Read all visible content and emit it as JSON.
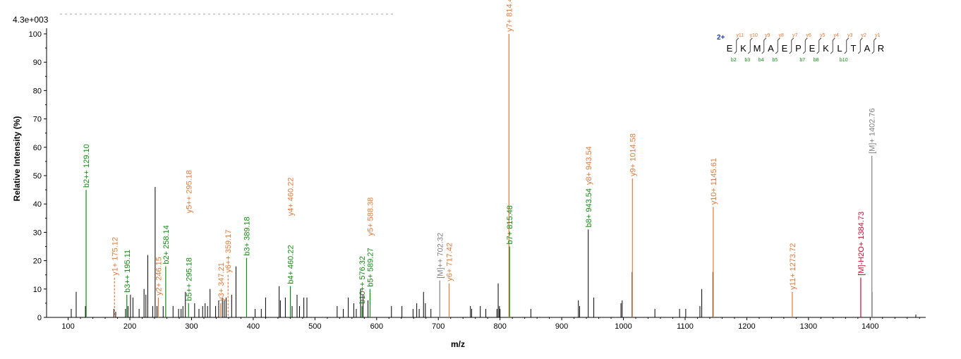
{
  "chart_data": {
    "type": "bar",
    "title": "",
    "scale_label": "4.3e+003",
    "xlabel": "m/z",
    "ylabel": "Relative   Intensity (%)",
    "xlim": [
      65,
      1490
    ],
    "ylim": [
      0,
      100
    ],
    "xticks": [
      "100",
      "200",
      "300",
      "400",
      "500",
      "600",
      "700",
      "800",
      "900",
      "1000",
      "1100",
      "1200",
      "1300",
      "1400"
    ],
    "xtick_values": [
      100,
      200,
      300,
      400,
      500,
      600,
      700,
      800,
      900,
      1000,
      1100,
      1200,
      1300,
      1400
    ],
    "yticks": [
      "0",
      "10",
      "20",
      "30",
      "40",
      "50",
      "60",
      "70",
      "80",
      "90",
      "100"
    ],
    "ytick_values": [
      0,
      10,
      20,
      30,
      40,
      50,
      60,
      70,
      80,
      90,
      100
    ],
    "grid": false,
    "colors": {
      "unassigned": "#000000",
      "b": "#138a13",
      "y": "#e07a3a",
      "precursor": "#808080",
      "water_loss": "#c8102e",
      "charge": "#1f3fb4"
    },
    "unassigned_peaks": [
      {
        "mz": 105,
        "i": 3
      },
      {
        "mz": 113,
        "i": 9
      },
      {
        "mz": 128,
        "i": 4
      },
      {
        "mz": 174,
        "i": 3
      },
      {
        "mz": 177,
        "i": 2
      },
      {
        "mz": 193,
        "i": 3
      },
      {
        "mz": 197,
        "i": 4
      },
      {
        "mz": 201,
        "i": 8
      },
      {
        "mz": 205,
        "i": 7
      },
      {
        "mz": 215,
        "i": 3
      },
      {
        "mz": 223,
        "i": 10
      },
      {
        "mz": 226,
        "i": 8
      },
      {
        "mz": 229,
        "i": 22
      },
      {
        "mz": 237,
        "i": 4
      },
      {
        "mz": 241,
        "i": 46
      },
      {
        "mz": 244,
        "i": 4
      },
      {
        "mz": 254,
        "i": 4
      },
      {
        "mz": 270,
        "i": 4
      },
      {
        "mz": 279,
        "i": 3
      },
      {
        "mz": 283,
        "i": 3
      },
      {
        "mz": 286,
        "i": 4
      },
      {
        "mz": 290,
        "i": 9
      },
      {
        "mz": 305,
        "i": 5
      },
      {
        "mz": 312,
        "i": 3
      },
      {
        "mz": 318,
        "i": 4
      },
      {
        "mz": 322,
        "i": 5
      },
      {
        "mz": 326,
        "i": 4
      },
      {
        "mz": 330,
        "i": 10
      },
      {
        "mz": 339,
        "i": 4
      },
      {
        "mz": 344,
        "i": 6
      },
      {
        "mz": 350,
        "i": 7
      },
      {
        "mz": 353,
        "i": 6
      },
      {
        "mz": 356,
        "i": 7
      },
      {
        "mz": 365,
        "i": 8
      },
      {
        "mz": 372,
        "i": 18
      },
      {
        "mz": 403,
        "i": 3
      },
      {
        "mz": 413,
        "i": 3
      },
      {
        "mz": 420,
        "i": 7
      },
      {
        "mz": 442,
        "i": 11
      },
      {
        "mz": 444,
        "i": 6
      },
      {
        "mz": 452,
        "i": 7
      },
      {
        "mz": 463,
        "i": 4
      },
      {
        "mz": 471,
        "i": 8
      },
      {
        "mz": 475,
        "i": 4
      },
      {
        "mz": 482,
        "i": 7
      },
      {
        "mz": 487,
        "i": 7
      },
      {
        "mz": 536,
        "i": 4
      },
      {
        "mz": 546,
        "i": 3
      },
      {
        "mz": 554,
        "i": 7
      },
      {
        "mz": 563,
        "i": 5
      },
      {
        "mz": 567,
        "i": 3
      },
      {
        "mz": 574,
        "i": 10
      },
      {
        "mz": 578,
        "i": 8
      },
      {
        "mz": 586,
        "i": 6
      },
      {
        "mz": 624,
        "i": 4
      },
      {
        "mz": 641,
        "i": 4
      },
      {
        "mz": 659,
        "i": 3
      },
      {
        "mz": 665,
        "i": 5
      },
      {
        "mz": 669,
        "i": 3
      },
      {
        "mz": 676,
        "i": 9
      },
      {
        "mz": 679,
        "i": 5
      },
      {
        "mz": 688,
        "i": 3
      },
      {
        "mz": 752,
        "i": 4
      },
      {
        "mz": 754,
        "i": 3
      },
      {
        "mz": 768,
        "i": 4
      },
      {
        "mz": 777,
        "i": 3
      },
      {
        "mz": 795,
        "i": 3
      },
      {
        "mz": 797,
        "i": 12
      },
      {
        "mz": 799,
        "i": 4
      },
      {
        "mz": 800,
        "i": 3
      },
      {
        "mz": 850,
        "i": 3
      },
      {
        "mz": 927,
        "i": 6
      },
      {
        "mz": 929,
        "i": 4
      },
      {
        "mz": 943,
        "i": 31
      },
      {
        "mz": 952,
        "i": 7
      },
      {
        "mz": 996,
        "i": 5
      },
      {
        "mz": 998,
        "i": 6
      },
      {
        "mz": 1014,
        "i": 16
      },
      {
        "mz": 1051,
        "i": 3
      },
      {
        "mz": 1091,
        "i": 3
      },
      {
        "mz": 1101,
        "i": 3
      },
      {
        "mz": 1124,
        "i": 4
      },
      {
        "mz": 1127,
        "i": 10
      },
      {
        "mz": 1145,
        "i": 16
      },
      {
        "mz": 1403,
        "i": 9
      },
      {
        "mz": 1474,
        "i": 1
      }
    ],
    "annotated_peaks": [
      {
        "mz": 129.1,
        "i": 45,
        "label": "b2++ 129.10",
        "type": "b"
      },
      {
        "mz": 175.12,
        "i": 14,
        "label": "y1+ 175.12",
        "type": "y",
        "dashed": true
      },
      {
        "mz": 195.11,
        "i": 8,
        "label": "b3++ 195.11",
        "type": "b"
      },
      {
        "mz": 246.15,
        "i": 7,
        "label": "y2+ 246.15",
        "type": "y"
      },
      {
        "mz": 258.14,
        "i": 18,
        "label": "b2+ 258.14",
        "type": "b"
      },
      {
        "mz": 295.18,
        "i": 5,
        "label": "b5++ 295.18",
        "type": "b"
      },
      {
        "mz": 295.18,
        "i": 36,
        "label": "y5++ 295.18",
        "type": "y",
        "label_only": true
      },
      {
        "mz": 347.21,
        "i": 5,
        "label": "y3+ 347.21",
        "type": "y"
      },
      {
        "mz": 359.17,
        "i": 15,
        "label": "y6++ 359.17",
        "type": "y",
        "dashed": true
      },
      {
        "mz": 389.18,
        "i": 21,
        "label": "b3+ 389.18",
        "type": "b"
      },
      {
        "mz": 460.22,
        "i": 11,
        "label": "b4+ 460.22",
        "type": "b"
      },
      {
        "mz": 460.22,
        "i": 35,
        "label": "y4+ 460.22",
        "type": "y",
        "label_only": true
      },
      {
        "mz": 576.32,
        "i": 4,
        "label": "b10++ 576.32",
        "type": "b"
      },
      {
        "mz": 589.27,
        "i": 10,
        "label": "b5+ 589.27",
        "type": "b"
      },
      {
        "mz": 589.27,
        "i": 28,
        "label": "y5+ 588.38",
        "type": "y",
        "label_only": true
      },
      {
        "mz": 702.32,
        "i": 13,
        "label": "[M]++ 702.32",
        "type": "precursor"
      },
      {
        "mz": 717.42,
        "i": 12,
        "label": "y6+ 717.42",
        "type": "y"
      },
      {
        "mz": 814.46,
        "i": 100,
        "label": "y7+ 814.46",
        "type": "y"
      },
      {
        "mz": 815.48,
        "i": 25,
        "label": "b7+ 815.48",
        "type": "b"
      },
      {
        "mz": 943.54,
        "i": 31,
        "label": "b8+ 943.54",
        "type": "b",
        "label_only": true
      },
      {
        "mz": 943.54,
        "i": 46,
        "label": "y8+ 943.54",
        "type": "y",
        "label_only": true
      },
      {
        "mz": 1014.58,
        "i": 49,
        "label": "y9+ 1014.58",
        "type": "y"
      },
      {
        "mz": 1145.61,
        "i": 39,
        "label": "y10+ 1145.61",
        "type": "y"
      },
      {
        "mz": 1273.72,
        "i": 9,
        "label": "y11+ 1273.72",
        "type": "y"
      },
      {
        "mz": 1384.73,
        "i": 14,
        "label": "[M]-H2O+ 1384.73",
        "type": "water_loss"
      },
      {
        "mz": 1402.76,
        "i": 57,
        "label": "[M]+ 1402.76",
        "type": "precursor"
      }
    ],
    "sequence": {
      "charge": "2+",
      "residues": [
        "E",
        "K",
        "M",
        "A",
        "E",
        "P",
        "E",
        "K",
        "L",
        "T",
        "A",
        "R"
      ],
      "y_ions": [
        "y11",
        "y10",
        "y9",
        "y8",
        "y7",
        "y6",
        "y5",
        "y4",
        "y3",
        "y2",
        "y1"
      ],
      "b_ions": [
        "b2",
        "b3",
        "b4",
        "b5",
        "b7",
        "b8",
        "b10"
      ],
      "b_after_residue": [
        1,
        2,
        3,
        4,
        6,
        7,
        9
      ]
    }
  }
}
